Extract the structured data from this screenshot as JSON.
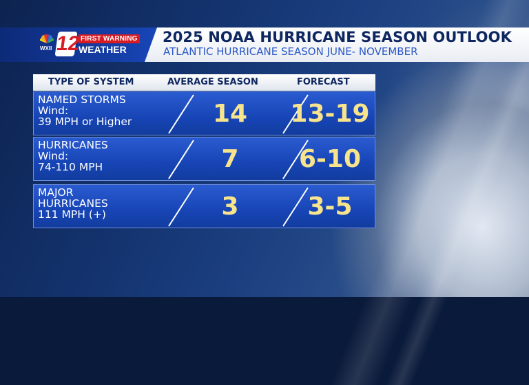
{
  "branding": {
    "network": "WXII",
    "channel": "12",
    "tag_top": "FIRST WARNING",
    "tag_bottom": "WEATHER"
  },
  "header": {
    "title": "2025 NOAA HURRICANE SEASON OUTLOOK",
    "subtitle": "ATLANTIC HURRICANE SEASON JUNE- NOVEMBER"
  },
  "table": {
    "columns": [
      "TYPE OF SYSTEM",
      "AVERAGE SEASON",
      "FORECAST"
    ],
    "rows": [
      {
        "label": "NAMED STORMS\nWind:\n39 MPH or Higher",
        "average": "14",
        "forecast": "13-19"
      },
      {
        "label": "HURRICANES\nWind:\n74-110 MPH",
        "average": "7",
        "forecast": "6-10"
      },
      {
        "label": "MAJOR\nHURRICANES\n111 MPH (+)",
        "average": "3",
        "forecast": "3-5"
      }
    ]
  },
  "colors": {
    "row_blue": "#1745b6",
    "value_yellow": "#f7e48c",
    "brand_red": "#d81c24",
    "title_navy": "#0e2760"
  }
}
